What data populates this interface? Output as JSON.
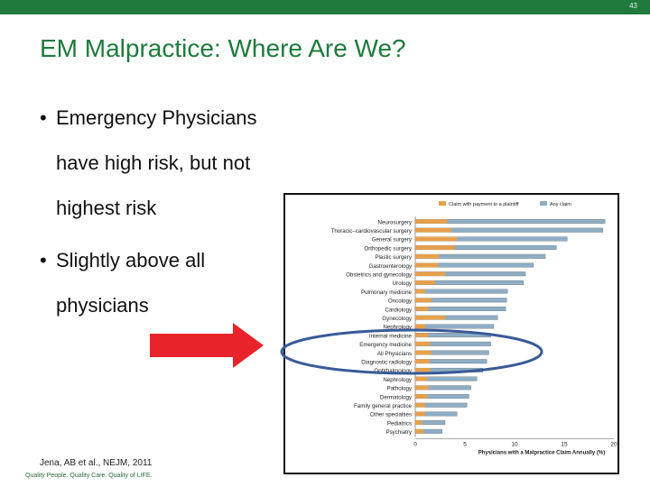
{
  "slide": {
    "number": "43",
    "title": "EM Malpractice: Where Are We?",
    "bullets": [
      {
        "lines": [
          "Emergency Physicians",
          "have high risk, but not",
          "highest risk"
        ]
      },
      {
        "lines": [
          "Slightly above all",
          "physicians"
        ]
      }
    ],
    "citation": "Jena, AB et al., NEJM, 2011",
    "footer_logo": "Quality People. Quality Care. Quality of LIFE.",
    "colors": {
      "accent": "#1f7a3d",
      "arrow": "#e8232a",
      "ellipse": "#3a5a98",
      "payment_series": "#e8a04a",
      "any_claim_series": "#8eaec6"
    }
  },
  "chart_data": {
    "type": "bar",
    "orientation": "horizontal",
    "categories": [
      "Neurosurgery",
      "Thoracic–cardiovascular surgery",
      "General surgery",
      "Orthopedic surgery",
      "Plastic surgery",
      "Gastroenterology",
      "Obstetrics and gynecology",
      "Urology",
      "Pulmonary medicine",
      "Oncology",
      "Cardiology",
      "Gynecology",
      "Nephrology",
      "Internal medicine",
      "Emergency medicine",
      "All Physicians",
      "Diagnostic radiology",
      "Ophthalmology",
      "Nephrology",
      "Pathology",
      "Dermatology",
      "Family general practice",
      "Other specialties",
      "Pediatrics",
      "Psychiatry"
    ],
    "series": [
      {
        "name": "Claim with payment to a plaintiff",
        "values": [
          3.2,
          3.6,
          4.2,
          4.0,
          2.4,
          2.3,
          3.0,
          2.0,
          1.0,
          1.6,
          1.3,
          3.0,
          1.0,
          1.3,
          1.5,
          1.6,
          1.4,
          1.5,
          1.2,
          1.3,
          1.2,
          1.0,
          1.0,
          0.7,
          0.8
        ]
      },
      {
        "name": "Any claim",
        "values": [
          19.1,
          18.9,
          15.3,
          14.2,
          13.1,
          11.9,
          11.1,
          10.9,
          9.3,
          9.2,
          9.1,
          8.3,
          7.9,
          7.6,
          7.6,
          7.4,
          7.2,
          6.8,
          6.2,
          5.6,
          5.4,
          5.2,
          4.2,
          3.0,
          2.7
        ]
      }
    ],
    "xlabel": "Physicians with a Malpractice Claim Annually (%)",
    "xlim": [
      0,
      20
    ],
    "xticks": [
      "0",
      "5",
      "10",
      "15",
      "20"
    ],
    "legend_position": "top-right"
  }
}
